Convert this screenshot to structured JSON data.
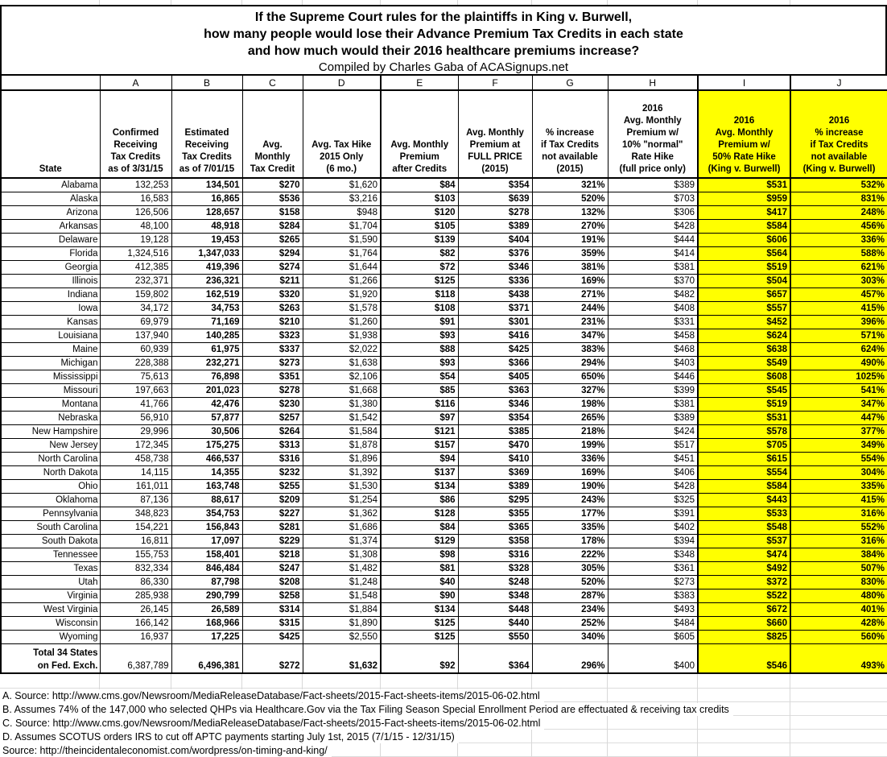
{
  "title": {
    "line1": "If the Supreme Court rules for the plaintiffs in King v. Burwell,",
    "line2": "how many people would lose their Advance Premium Tax Credits in each state",
    "line3": "and how much would their 2016 healthcare premiums increase?",
    "byline": "Compiled by Charles Gaba of ACASignups.net"
  },
  "state_header": "State",
  "columns": [
    {
      "letter": "A",
      "header": "Confirmed\nReceiving\nTax Credits\nas of 3/31/15"
    },
    {
      "letter": "B",
      "header": "Estimated\nReceiving\nTax Credits\nas of 7/01/15"
    },
    {
      "letter": "C",
      "header": "Avg.\nMonthly\nTax Credit"
    },
    {
      "letter": "D",
      "header": "Avg. Tax Hike\n2015 Only\n(6 mo.)"
    },
    {
      "letter": "E",
      "header": "Avg. Monthly\nPremium\nafter Credits"
    },
    {
      "letter": "F",
      "header": "Avg. Monthly\nPremium at\nFULL PRICE\n(2015)"
    },
    {
      "letter": "G",
      "header": "% increase\nif Tax Credits\nnot available\n(2015)"
    },
    {
      "letter": "H",
      "header": "2016\nAvg. Monthly\nPremium w/\n10% \"normal\"\nRate Hike\n(full price only)"
    },
    {
      "letter": "I",
      "header": "2016\nAvg. Monthly\nPremium w/\n50% Rate Hike\n(King v. Burwell)",
      "highlight": true
    },
    {
      "letter": "J",
      "header": "2016\n% increase\nif Tax Credits\nnot available\n(King v. Burwell)",
      "highlight": true
    }
  ],
  "rows": [
    {
      "state": "Alabama",
      "values": [
        "132,253",
        "134,501",
        "$270",
        "$1,620",
        "$84",
        "$354",
        "321%",
        "$389",
        "$531",
        "532%"
      ]
    },
    {
      "state": "Alaska",
      "values": [
        "16,583",
        "16,865",
        "$536",
        "$3,216",
        "$103",
        "$639",
        "520%",
        "$703",
        "$959",
        "831%"
      ]
    },
    {
      "state": "Arizona",
      "values": [
        "126,506",
        "128,657",
        "$158",
        "$948",
        "$120",
        "$278",
        "132%",
        "$306",
        "$417",
        "248%"
      ]
    },
    {
      "state": "Arkansas",
      "values": [
        "48,100",
        "48,918",
        "$284",
        "$1,704",
        "$105",
        "$389",
        "270%",
        "$428",
        "$584",
        "456%"
      ]
    },
    {
      "state": "Delaware",
      "values": [
        "19,128",
        "19,453",
        "$265",
        "$1,590",
        "$139",
        "$404",
        "191%",
        "$444",
        "$606",
        "336%"
      ]
    },
    {
      "state": "Florida",
      "values": [
        "1,324,516",
        "1,347,033",
        "$294",
        "$1,764",
        "$82",
        "$376",
        "359%",
        "$414",
        "$564",
        "588%"
      ]
    },
    {
      "state": "Georgia",
      "values": [
        "412,385",
        "419,396",
        "$274",
        "$1,644",
        "$72",
        "$346",
        "381%",
        "$381",
        "$519",
        "621%"
      ]
    },
    {
      "state": "Illinois",
      "values": [
        "232,371",
        "236,321",
        "$211",
        "$1,266",
        "$125",
        "$336",
        "169%",
        "$370",
        "$504",
        "303%"
      ]
    },
    {
      "state": "Indiana",
      "values": [
        "159,802",
        "162,519",
        "$320",
        "$1,920",
        "$118",
        "$438",
        "271%",
        "$482",
        "$657",
        "457%"
      ]
    },
    {
      "state": "Iowa",
      "values": [
        "34,172",
        "34,753",
        "$263",
        "$1,578",
        "$108",
        "$371",
        "244%",
        "$408",
        "$557",
        "415%"
      ]
    },
    {
      "state": "Kansas",
      "values": [
        "69,979",
        "71,169",
        "$210",
        "$1,260",
        "$91",
        "$301",
        "231%",
        "$331",
        "$452",
        "396%"
      ]
    },
    {
      "state": "Louisiana",
      "values": [
        "137,940",
        "140,285",
        "$323",
        "$1,938",
        "$93",
        "$416",
        "347%",
        "$458",
        "$624",
        "571%"
      ]
    },
    {
      "state": "Maine",
      "values": [
        "60,939",
        "61,975",
        "$337",
        "$2,022",
        "$88",
        "$425",
        "383%",
        "$468",
        "$638",
        "624%"
      ]
    },
    {
      "state": "Michigan",
      "values": [
        "228,388",
        "232,271",
        "$273",
        "$1,638",
        "$93",
        "$366",
        "294%",
        "$403",
        "$549",
        "490%"
      ]
    },
    {
      "state": "Mississippi",
      "values": [
        "75,613",
        "76,898",
        "$351",
        "$2,106",
        "$54",
        "$405",
        "650%",
        "$446",
        "$608",
        "1025%"
      ]
    },
    {
      "state": "Missouri",
      "values": [
        "197,663",
        "201,023",
        "$278",
        "$1,668",
        "$85",
        "$363",
        "327%",
        "$399",
        "$545",
        "541%"
      ]
    },
    {
      "state": "Montana",
      "values": [
        "41,766",
        "42,476",
        "$230",
        "$1,380",
        "$116",
        "$346",
        "198%",
        "$381",
        "$519",
        "347%"
      ]
    },
    {
      "state": "Nebraska",
      "values": [
        "56,910",
        "57,877",
        "$257",
        "$1,542",
        "$97",
        "$354",
        "265%",
        "$389",
        "$531",
        "447%"
      ]
    },
    {
      "state": "New Hampshire",
      "values": [
        "29,996",
        "30,506",
        "$264",
        "$1,584",
        "$121",
        "$385",
        "218%",
        "$424",
        "$578",
        "377%"
      ]
    },
    {
      "state": "New Jersey",
      "values": [
        "172,345",
        "175,275",
        "$313",
        "$1,878",
        "$157",
        "$470",
        "199%",
        "$517",
        "$705",
        "349%"
      ]
    },
    {
      "state": "North Carolina",
      "values": [
        "458,738",
        "466,537",
        "$316",
        "$1,896",
        "$94",
        "$410",
        "336%",
        "$451",
        "$615",
        "554%"
      ]
    },
    {
      "state": "North Dakota",
      "values": [
        "14,115",
        "14,355",
        "$232",
        "$1,392",
        "$137",
        "$369",
        "169%",
        "$406",
        "$554",
        "304%"
      ]
    },
    {
      "state": "Ohio",
      "values": [
        "161,011",
        "163,748",
        "$255",
        "$1,530",
        "$134",
        "$389",
        "190%",
        "$428",
        "$584",
        "335%"
      ]
    },
    {
      "state": "Oklahoma",
      "values": [
        "87,136",
        "88,617",
        "$209",
        "$1,254",
        "$86",
        "$295",
        "243%",
        "$325",
        "$443",
        "415%"
      ]
    },
    {
      "state": "Pennsylvania",
      "values": [
        "348,823",
        "354,753",
        "$227",
        "$1,362",
        "$128",
        "$355",
        "177%",
        "$391",
        "$533",
        "316%"
      ]
    },
    {
      "state": "South Carolina",
      "values": [
        "154,221",
        "156,843",
        "$281",
        "$1,686",
        "$84",
        "$365",
        "335%",
        "$402",
        "$548",
        "552%"
      ]
    },
    {
      "state": "South Dakota",
      "values": [
        "16,811",
        "17,097",
        "$229",
        "$1,374",
        "$129",
        "$358",
        "178%",
        "$394",
        "$537",
        "316%"
      ]
    },
    {
      "state": "Tennessee",
      "values": [
        "155,753",
        "158,401",
        "$218",
        "$1,308",
        "$98",
        "$316",
        "222%",
        "$348",
        "$474",
        "384%"
      ]
    },
    {
      "state": "Texas",
      "values": [
        "832,334",
        "846,484",
        "$247",
        "$1,482",
        "$81",
        "$328",
        "305%",
        "$361",
        "$492",
        "507%"
      ]
    },
    {
      "state": "Utah",
      "values": [
        "86,330",
        "87,798",
        "$208",
        "$1,248",
        "$40",
        "$248",
        "520%",
        "$273",
        "$372",
        "830%"
      ]
    },
    {
      "state": "Virginia",
      "values": [
        "285,938",
        "290,799",
        "$258",
        "$1,548",
        "$90",
        "$348",
        "287%",
        "$383",
        "$522",
        "480%"
      ]
    },
    {
      "state": "West Virginia",
      "values": [
        "26,145",
        "26,589",
        "$314",
        "$1,884",
        "$134",
        "$448",
        "234%",
        "$493",
        "$672",
        "401%"
      ]
    },
    {
      "state": "Wisconsin",
      "values": [
        "166,142",
        "168,966",
        "$315",
        "$1,890",
        "$125",
        "$440",
        "252%",
        "$484",
        "$660",
        "428%"
      ]
    },
    {
      "state": "Wyoming",
      "values": [
        "16,937",
        "17,225",
        "$425",
        "$2,550",
        "$125",
        "$550",
        "340%",
        "$605",
        "$825",
        "560%"
      ]
    }
  ],
  "total_row": {
    "label": "Total 34 States\non Fed. Exch.",
    "values": [
      "6,387,789",
      "6,496,381",
      "$272",
      "$1,632",
      "$92",
      "$364",
      "296%",
      "$400",
      "$546",
      "493%"
    ]
  },
  "footnotes": [
    "A. Source: http://www.cms.gov/Newsroom/MediaReleaseDatabase/Fact-sheets/2015-Fact-sheets-items/2015-06-02.html",
    "B. Assumes 74% of the 147,000 who selected QHPs via Healthcare.Gov via the Tax Filing Season Special Enrollment Period are effectuated & receiving tax credits",
    "C. Source: http://www.cms.gov/Newsroom/MediaReleaseDatabase/Fact-sheets/2015-Fact-sheets-items/2015-06-02.html",
    "D. Assumes SCOTUS orders IRS to cut off APTC payments starting July 1st, 2015 (7/1/15 - 12/31/15)",
    "Source: http://theincidentaleconomist.com/wordpress/on-timing-and-king/"
  ],
  "colors": {
    "highlight": "#FFFF00",
    "grid_faint": "#d8d8d8"
  }
}
